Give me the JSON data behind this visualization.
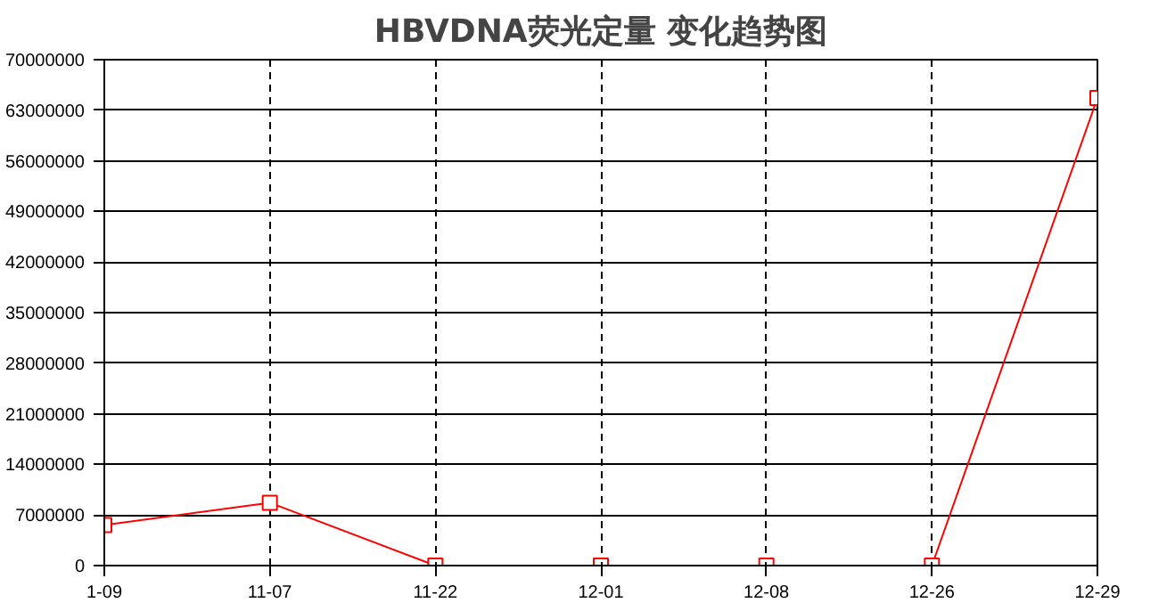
{
  "chart_data": {
    "type": "line",
    "title": "HBVDNA荧光定量 变化趋势图",
    "categories": [
      "1-09",
      "11-07",
      "11-22",
      "12-01",
      "12-08",
      "12-26",
      "12-29"
    ],
    "series": [
      {
        "color": "#ff0000",
        "values": [
          5600000,
          8700000,
          0,
          0,
          0,
          0,
          64700000
        ]
      }
    ],
    "ylim": [
      0,
      70000000
    ],
    "yticks": [
      0,
      7000000,
      14000000,
      21000000,
      28000000,
      35000000,
      42000000,
      49000000,
      56000000,
      63000000,
      70000000
    ],
    "grid": true,
    "marker": "square",
    "line_style": "solid"
  }
}
